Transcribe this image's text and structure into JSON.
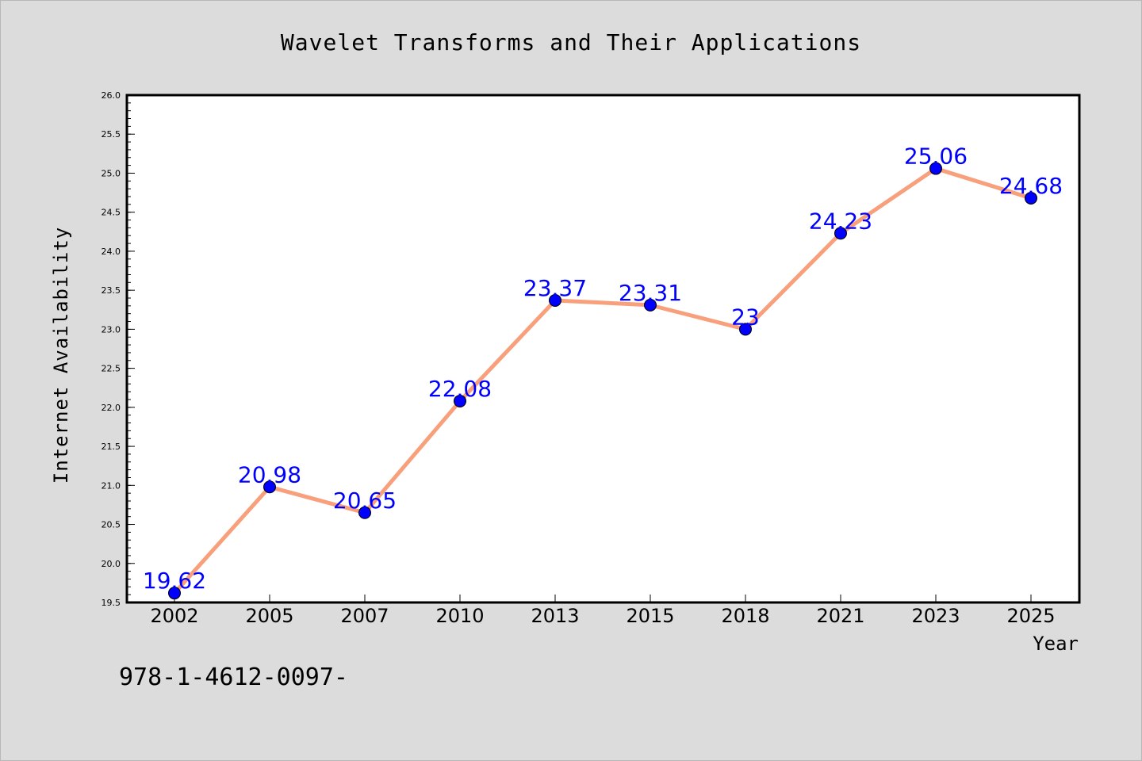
{
  "chart_data": {
    "type": "line",
    "title": "Wavelet Transforms and Their Applications",
    "xlabel": "Year",
    "ylabel": "Internet Availability",
    "categories": [
      "2002",
      "2005",
      "2007",
      "2010",
      "2013",
      "2015",
      "2018",
      "2021",
      "2023",
      "2025"
    ],
    "values": [
      19.62,
      20.98,
      20.65,
      22.08,
      23.37,
      23.31,
      23,
      24.23,
      25.06,
      24.68
    ],
    "data_labels": [
      "19.62",
      "20.98",
      "20.65",
      "22.08",
      "23.37",
      "23.31",
      "23",
      "24.23",
      "25.06",
      "24.68"
    ],
    "ylim": [
      19.5,
      26.0
    ],
    "y_ticks": [
      "19.5",
      "20.0",
      "20.5",
      "21.0",
      "21.5",
      "22.0",
      "22.5",
      "23.0",
      "23.5",
      "24.0",
      "24.5",
      "25.0",
      "25.5",
      "26.0"
    ],
    "grid": false,
    "legend": "none",
    "colors": {
      "line": "#f8a07c",
      "marker": "#0000ff",
      "label": "#0000ff",
      "background": "#dcdcdc",
      "plot_area": "#ffffff"
    }
  },
  "footer_text": "978-1-4612-0097-"
}
